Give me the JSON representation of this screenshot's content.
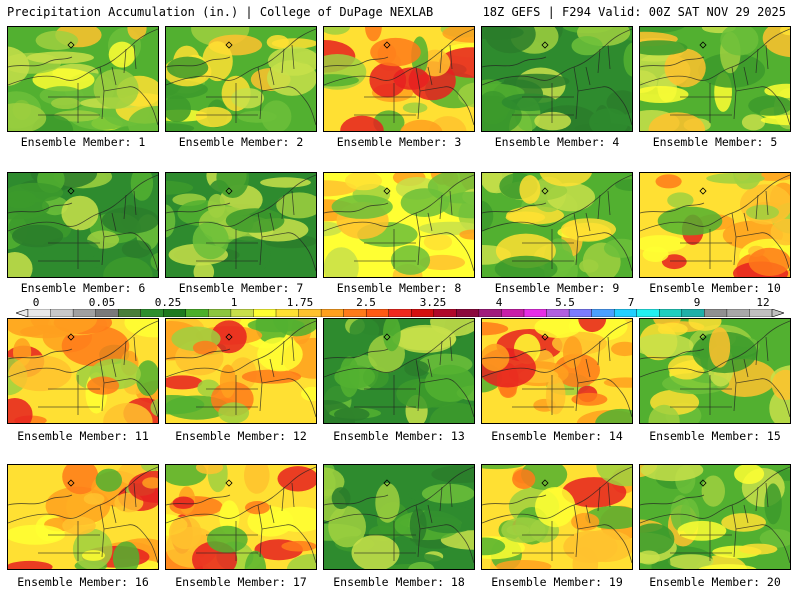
{
  "header": {
    "title_left": "Precipitation Accumulation (in.) | College of DuPage NEXLAB",
    "title_right": "18Z GEFS | F294 Valid: 00Z SAT NOV 29 2025"
  },
  "members": [
    {
      "label": "Ensemble Member: 1",
      "palette": "mixed"
    },
    {
      "label": "Ensemble Member: 2",
      "palette": "mixed"
    },
    {
      "label": "Ensemble Member: 3",
      "palette": "warm"
    },
    {
      "label": "Ensemble Member: 4",
      "palette": "green"
    },
    {
      "label": "Ensemble Member: 5",
      "palette": "mixed"
    },
    {
      "label": "Ensemble Member: 6",
      "palette": "green"
    },
    {
      "label": "Ensemble Member: 7",
      "palette": "green"
    },
    {
      "label": "Ensemble Member: 8",
      "palette": "yellow"
    },
    {
      "label": "Ensemble Member: 9",
      "palette": "mixed"
    },
    {
      "label": "Ensemble Member: 10",
      "palette": "warm"
    },
    {
      "label": "Ensemble Member: 11",
      "palette": "warm"
    },
    {
      "label": "Ensemble Member: 12",
      "palette": "warm"
    },
    {
      "label": "Ensemble Member: 13",
      "palette": "green"
    },
    {
      "label": "Ensemble Member: 14",
      "palette": "warm"
    },
    {
      "label": "Ensemble Member: 15",
      "palette": "mixed"
    },
    {
      "label": "Ensemble Member: 16",
      "palette": "warm"
    },
    {
      "label": "Ensemble Member: 17",
      "palette": "warm"
    },
    {
      "label": "Ensemble Member: 18",
      "palette": "green"
    },
    {
      "label": "Ensemble Member: 19",
      "palette": "warm"
    },
    {
      "label": "Ensemble Member: 20",
      "palette": "mixed"
    }
  ],
  "colorbar": {
    "labels": [
      "0",
      "0.05",
      "0.25",
      "1",
      "1.75",
      "2.5",
      "3.25",
      "4",
      "5.5",
      "7",
      "9",
      "12"
    ],
    "colors": [
      "#e8e8e8",
      "#c8c8c8",
      "#a0a0a0",
      "#7a7a7a",
      "#4a7f3a",
      "#2d8f2d",
      "#1f7a1f",
      "#4caf2a",
      "#8cc63f",
      "#c8e04a",
      "#ffff33",
      "#ffe033",
      "#ffc22e",
      "#ffa01e",
      "#ff7a1a",
      "#ff5a14",
      "#f0281e",
      "#d40f0f",
      "#b0082a",
      "#8b0a3c",
      "#a01c7c",
      "#c81ea8",
      "#e62ee6",
      "#b060e0",
      "#7c7cff",
      "#4aa0ff",
      "#22d0ff",
      "#22f0f0",
      "#20d0c0",
      "#20b0a8",
      "#909090",
      "#a8a8a8",
      "#c0c0c0"
    ]
  }
}
